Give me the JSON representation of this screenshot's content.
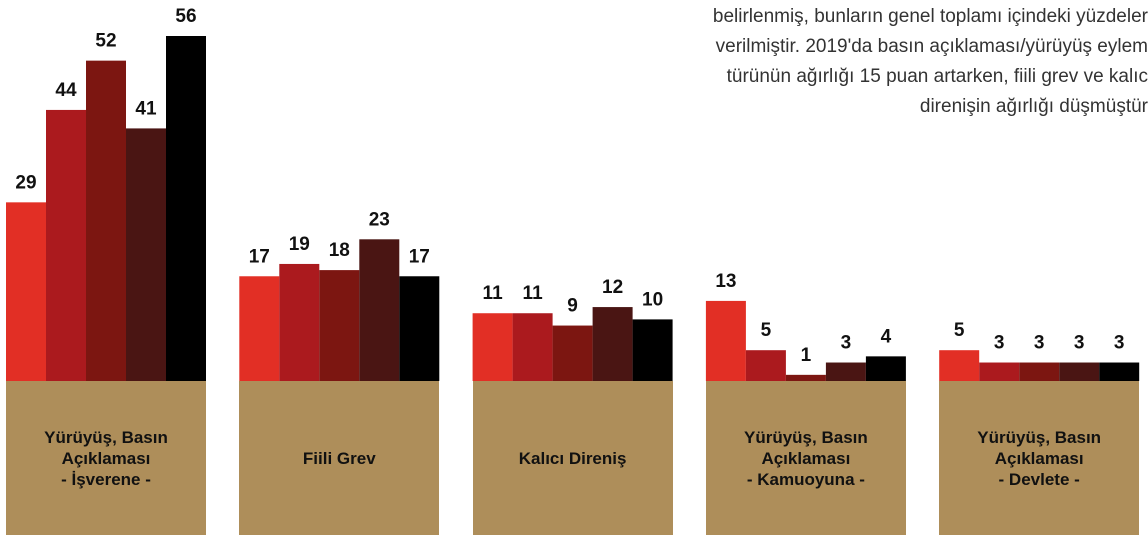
{
  "chart_data": {
    "type": "bar",
    "annotation": [
      "belirlenmiş, bunların genel toplamı içindeki yüzdeler",
      "verilmiştir. 2019'da basın açıklaması/yürüyüş eylem",
      "türünün ağırlığı 15 puan artarken, fiili grev ve kalıc",
      "direnişin ağırlığı düşmüştür"
    ],
    "categories": [
      "Yürüyüş, Basın\nAçıklaması\n- İşverene -",
      "Fiili Grev",
      "Kalıcı Direniş",
      "Yürüyüş, Basın\nAçıklaması\n- Kamuoyuna -",
      "Yürüyüş, Basın\nAçıklaması\n- Devlete -"
    ],
    "series": [
      {
        "color": "#e22f25",
        "values": [
          29,
          17,
          11,
          13,
          5
        ]
      },
      {
        "color": "#ab1a1e",
        "values": [
          44,
          19,
          11,
          5,
          3
        ]
      },
      {
        "color": "#7c1611",
        "values": [
          52,
          18,
          9,
          1,
          3
        ]
      },
      {
        "color": "#4a1513",
        "values": [
          41,
          23,
          12,
          3,
          3
        ]
      },
      {
        "color": "#000000",
        "values": [
          56,
          17,
          10,
          4,
          3
        ]
      }
    ],
    "ylim": [
      0,
      56
    ]
  }
}
